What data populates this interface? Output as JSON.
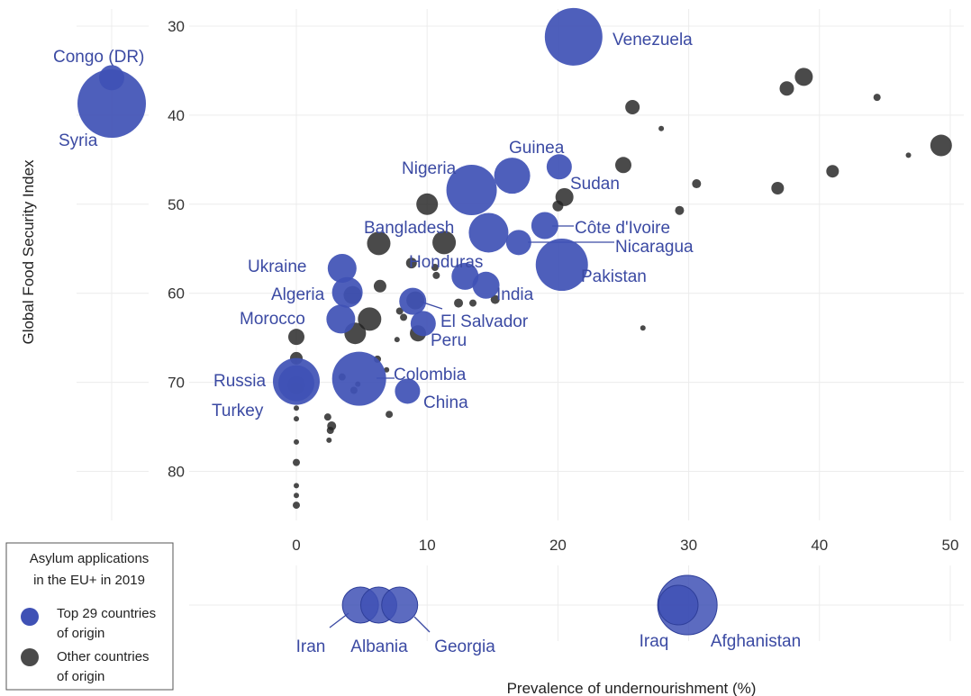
{
  "colors": {
    "top": "#3f51b5",
    "other": "#222222",
    "label": "#3b4aa3",
    "grid": "#ececec"
  },
  "chart_data": {
    "type": "scatter",
    "xlabel": "Prevalence of undernourishment (%)",
    "ylabel": "Global Food Security Index",
    "x_ticks": [
      "0",
      "10",
      "20",
      "30",
      "40",
      "50"
    ],
    "y_ticks": [
      "30",
      "40",
      "50",
      "60",
      "70",
      "80"
    ],
    "xlim": [
      -1.5,
      51.5
    ],
    "ylim": [
      28,
      85
    ],
    "y_reversed": true,
    "grid": true,
    "legend": {
      "title_lines": [
        "Asylum applications",
        "in the EU+ in 2019"
      ],
      "placement": "bottom-left",
      "entries": [
        {
          "series": "top",
          "lines": [
            "Top 29 countries",
            "of origin"
          ]
        },
        {
          "series": "other",
          "lines": [
            "Other countries",
            "of origin"
          ]
        }
      ]
    },
    "series": [
      {
        "id": "top",
        "points": [
          {
            "label": "Venezuela",
            "x": 21.2,
            "y": 31.2,
            "size": 3.2
          },
          {
            "label": "Guinea",
            "x": 20.1,
            "y": 45.8,
            "size": 1.4
          },
          {
            "label": "Sudan",
            "x": 16.5,
            "y": 46.8,
            "size": 2.0
          },
          {
            "label": "Nigeria",
            "x": 13.4,
            "y": 48.4,
            "size": 2.8
          },
          {
            "label": "Côte d'Ivoire",
            "x": 19.0,
            "y": 52.4,
            "size": 1.5
          },
          {
            "label": "Bangladesh",
            "x": 14.7,
            "y": 53.2,
            "size": 2.2
          },
          {
            "label": "Nicaragua",
            "x": 17.0,
            "y": 54.3,
            "size": 1.4
          },
          {
            "label": "Pakistan",
            "x": 20.3,
            "y": 56.8,
            "size": 2.9
          },
          {
            "label": "Ukraine",
            "x": 3.5,
            "y": 57.2,
            "size": 1.6
          },
          {
            "label": "Honduras",
            "x": 12.9,
            "y": 58.1,
            "size": 1.5
          },
          {
            "label": "India",
            "x": 14.5,
            "y": 59.1,
            "size": 1.5
          },
          {
            "label": "Algeria",
            "x": 3.9,
            "y": 59.9,
            "size": 1.7
          },
          {
            "label": "El Salvador",
            "x": 8.9,
            "y": 60.9,
            "size": 1.5
          },
          {
            "label": "Morocco",
            "x": 3.4,
            "y": 62.9,
            "size": 1.6
          },
          {
            "label": "Peru",
            "x": 9.7,
            "y": 63.4,
            "size": 1.4
          },
          {
            "label": "Colombia",
            "x": 4.8,
            "y": 69.6,
            "size": 3.0
          },
          {
            "label": "Russia",
            "x": 0.0,
            "y": 69.9,
            "size": 2.6
          },
          {
            "label": "Turkey",
            "x": 0.0,
            "y": 70.1,
            "size": 2.0
          },
          {
            "label": "China",
            "x": 8.5,
            "y": 71.0,
            "size": 1.4
          }
        ]
      },
      {
        "id": "other",
        "points": [
          {
            "x": 38.8,
            "y": 35.7,
            "size": 1.0
          },
          {
            "x": 37.5,
            "y": 37.0,
            "size": 0.8
          },
          {
            "x": 44.4,
            "y": 38.0,
            "size": 0.4
          },
          {
            "x": 25.7,
            "y": 39.1,
            "size": 0.8
          },
          {
            "x": 27.9,
            "y": 41.5,
            "size": 0.3
          },
          {
            "x": 49.3,
            "y": 43.4,
            "size": 1.2
          },
          {
            "x": 46.8,
            "y": 44.5,
            "size": 0.3
          },
          {
            "x": 25.0,
            "y": 45.6,
            "size": 0.9
          },
          {
            "x": 41.0,
            "y": 46.3,
            "size": 0.7
          },
          {
            "x": 30.6,
            "y": 47.7,
            "size": 0.5
          },
          {
            "x": 36.8,
            "y": 48.2,
            "size": 0.7
          },
          {
            "x": 20.5,
            "y": 49.2,
            "size": 1.0
          },
          {
            "x": 20.0,
            "y": 50.2,
            "size": 0.6
          },
          {
            "x": 10.0,
            "y": 50.0,
            "size": 1.2
          },
          {
            "x": 29.3,
            "y": 50.7,
            "size": 0.5
          },
          {
            "x": 6.3,
            "y": 54.4,
            "size": 1.3
          },
          {
            "x": 11.3,
            "y": 54.3,
            "size": 1.3
          },
          {
            "x": 8.8,
            "y": 56.6,
            "size": 0.6
          },
          {
            "x": 10.6,
            "y": 57.1,
            "size": 0.4
          },
          {
            "x": 6.4,
            "y": 59.2,
            "size": 0.7
          },
          {
            "x": 4.3,
            "y": 60.2,
            "size": 1.0
          },
          {
            "x": 10.7,
            "y": 58.0,
            "size": 0.4
          },
          {
            "x": 9.1,
            "y": 60.8,
            "size": 1.0
          },
          {
            "x": 12.4,
            "y": 61.1,
            "size": 0.5
          },
          {
            "x": 13.5,
            "y": 61.1,
            "size": 0.4
          },
          {
            "x": 15.2,
            "y": 60.7,
            "size": 0.5
          },
          {
            "x": 7.9,
            "y": 62.0,
            "size": 0.4
          },
          {
            "x": 8.2,
            "y": 62.7,
            "size": 0.4
          },
          {
            "x": 5.6,
            "y": 62.9,
            "size": 1.3
          },
          {
            "x": 4.5,
            "y": 64.5,
            "size": 1.2
          },
          {
            "x": 9.3,
            "y": 64.5,
            "size": 0.9
          },
          {
            "x": 7.7,
            "y": 65.2,
            "size": 0.3
          },
          {
            "x": 26.5,
            "y": 63.9,
            "size": 0.3
          },
          {
            "x": 0.0,
            "y": 64.9,
            "size": 0.9
          },
          {
            "x": 0.0,
            "y": 67.3,
            "size": 0.7
          },
          {
            "x": 6.2,
            "y": 67.4,
            "size": 0.4
          },
          {
            "x": 6.9,
            "y": 68.6,
            "size": 0.3
          },
          {
            "x": 3.5,
            "y": 69.4,
            "size": 0.4
          },
          {
            "x": 0.0,
            "y": 70.3,
            "size": 1.0
          },
          {
            "x": 0.0,
            "y": 70.7,
            "size": 0.7
          },
          {
            "x": 4.7,
            "y": 70.2,
            "size": 0.3
          },
          {
            "x": 4.4,
            "y": 70.9,
            "size": 0.4
          },
          {
            "x": 0.0,
            "y": 72.9,
            "size": 0.3
          },
          {
            "x": 7.1,
            "y": 73.6,
            "size": 0.4
          },
          {
            "x": 2.4,
            "y": 73.9,
            "size": 0.4
          },
          {
            "x": 0.0,
            "y": 74.1,
            "size": 0.3
          },
          {
            "x": 2.7,
            "y": 74.9,
            "size": 0.5
          },
          {
            "x": 2.6,
            "y": 75.4,
            "size": 0.4
          },
          {
            "x": 2.5,
            "y": 76.5,
            "size": 0.3
          },
          {
            "x": 0.0,
            "y": 76.7,
            "size": 0.3
          },
          {
            "x": 0.0,
            "y": 79.0,
            "size": 0.4
          },
          {
            "x": 0.0,
            "y": 81.6,
            "size": 0.3
          },
          {
            "x": 0.0,
            "y": 82.7,
            "size": 0.3
          },
          {
            "x": 0.0,
            "y": 83.8,
            "size": 0.4
          }
        ]
      }
    ],
    "outside_gfsi": [
      {
        "label": "Congo (DR)",
        "gfsi": 35.8,
        "size": 1.4
      },
      {
        "label": "Syria",
        "gfsi": 38.7,
        "size": 3.8
      }
    ],
    "outside_pou": [
      {
        "label": "Iran",
        "x": 4.9,
        "size": 2.0
      },
      {
        "label": "Albania",
        "x": 6.3,
        "size": 2.0
      },
      {
        "label": "Georgia",
        "x": 7.9,
        "size": 2.0
      },
      {
        "label": "Iraq",
        "x": 29.2,
        "size": 2.2
      },
      {
        "label": "Afghanistan",
        "x": 29.9,
        "size": 3.3
      }
    ]
  }
}
